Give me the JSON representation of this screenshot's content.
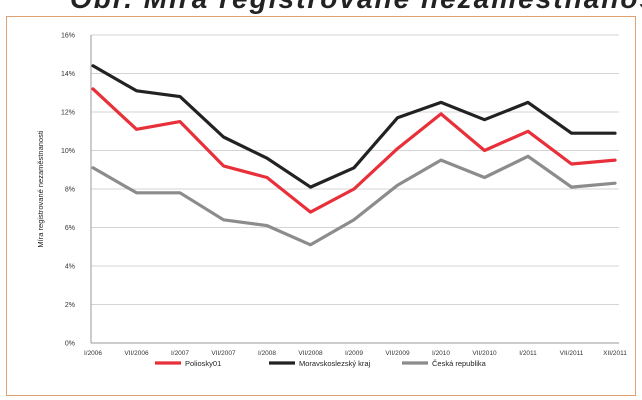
{
  "header": {
    "cropped_title": "Obr. Míra registrované nezaměstnanosti"
  },
  "chart_data": {
    "type": "line",
    "title": "",
    "ylabel": "Míra registrované nezaměstnanosti",
    "xlabel": "",
    "ylim": [
      0,
      16
    ],
    "y_ticks": [
      0,
      2,
      4,
      6,
      8,
      10,
      12,
      14,
      16
    ],
    "y_tick_labels": [
      "0%",
      "2%",
      "4%",
      "6%",
      "8%",
      "10%",
      "12%",
      "14%",
      "16%"
    ],
    "grid": true,
    "legend_position": "bottom",
    "categories": [
      "I/2006",
      "VII/2006",
      "I/2007",
      "VII/2007",
      "I/2008",
      "VII/2008",
      "I/2009",
      "VII/2009",
      "I/2010",
      "VII/2010",
      "I/2011",
      "VII/2011",
      "XII/2011"
    ],
    "series": [
      {
        "name": "Poliosky01",
        "color": "#e8303a",
        "values": [
          13.2,
          11.1,
          11.5,
          9.2,
          8.6,
          6.8,
          8.0,
          10.1,
          11.9,
          10.0,
          11.0,
          9.3,
          9.5
        ]
      },
      {
        "name": "Moravskoslezský kraj",
        "color": "#222222",
        "values": [
          14.4,
          13.1,
          12.8,
          10.7,
          9.6,
          8.1,
          9.1,
          11.7,
          12.5,
          11.6,
          12.5,
          10.9,
          10.9
        ]
      },
      {
        "name": "Česká republika",
        "color": "#8c8c8c",
        "values": [
          9.1,
          7.8,
          7.8,
          6.4,
          6.1,
          5.1,
          6.4,
          8.2,
          9.5,
          8.6,
          9.7,
          8.1,
          8.3
        ]
      }
    ]
  }
}
